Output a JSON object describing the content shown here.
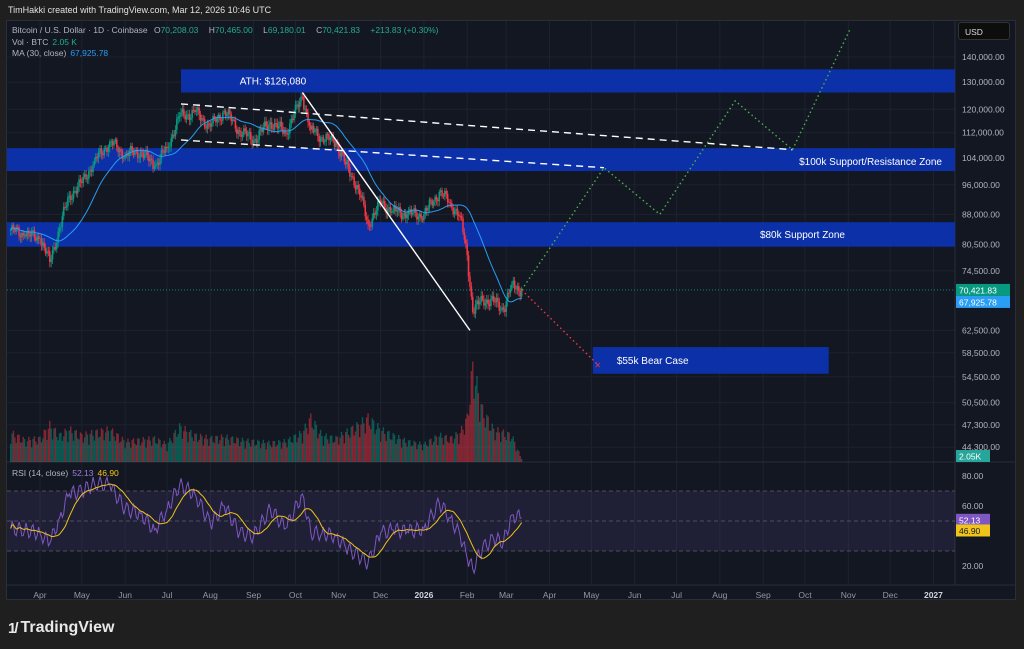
{
  "header": {
    "credit": "TimHakki created with TradingView.com, Mar 12, 2026 10:46 UTC"
  },
  "legend": {
    "symbol": "Bitcoin / U.S. Dollar · 1D · Coinbase",
    "o_label": "O",
    "open": "70,208.03",
    "h_label": "H",
    "high": "70,465.00",
    "l_label": "L",
    "low": "69,180.01",
    "c_label": "C",
    "close": "70,421.83",
    "change": "+213.83 (+0.30%)",
    "vol_label": "Vol · BTC",
    "vol_value": "2.05 K",
    "ma_label": "MA (30, close)",
    "ma_value": "67,925.78",
    "rsi_label": "RSI (14, close)",
    "rsi_value": "52.13",
    "rsi_ma_value": "46.90"
  },
  "price_axis": {
    "currency": "USD",
    "last_price_label": "70,421.83",
    "ma_price_label": "67,925.78",
    "volume_label": "2.05K",
    "rsi_label": "52.13",
    "rsi_ma_label": "46.90"
  },
  "branding": {
    "logo": "TradingView"
  },
  "colors": {
    "up": "#089981",
    "down": "#f23645",
    "ma": "#2a9df4",
    "zone": "#0c33b4",
    "rsi": "#7e57c2",
    "rsi_ma": "#f0c419",
    "projection_up": "#4caf50",
    "projection_down": "#f23645"
  },
  "chart_data": {
    "type": "candlestick",
    "title": "Bitcoin / U.S. Dollar · 1D · Coinbase",
    "y_scale": "log",
    "ylim": [
      42000,
      155000
    ],
    "grid": true,
    "price_ticks": [
      140000,
      130000,
      120000,
      112000,
      104000,
      96000,
      88000,
      80500,
      74500,
      62500,
      58500,
      54500,
      50500,
      47300,
      44300
    ],
    "price_tick_labels": [
      "140,000.00",
      "130,000.00",
      "120,000.00",
      "112,000.00",
      "104,000.00",
      "96,000.00",
      "88,000.00",
      "80,500.00",
      "74,500.00",
      "62,500.00",
      "58,500.00",
      "54,500.00",
      "50,500.00",
      "47,300.00",
      "44,300.00"
    ],
    "time_ticks": [
      {
        "date": "2025-04-01",
        "label": "Apr"
      },
      {
        "date": "2025-05-01",
        "label": "May"
      },
      {
        "date": "2025-06-01",
        "label": "Jun"
      },
      {
        "date": "2025-07-01",
        "label": "Jul"
      },
      {
        "date": "2025-08-01",
        "label": "Aug"
      },
      {
        "date": "2025-09-01",
        "label": "Sep"
      },
      {
        "date": "2025-10-01",
        "label": "Oct"
      },
      {
        "date": "2025-11-01",
        "label": "Nov"
      },
      {
        "date": "2025-12-01",
        "label": "Dec"
      },
      {
        "date": "2026-01-01",
        "label": "2026",
        "bold": true
      },
      {
        "date": "2026-02-01",
        "label": "Feb"
      },
      {
        "date": "2026-03-01",
        "label": "Mar"
      },
      {
        "date": "2026-04-01",
        "label": "Apr"
      },
      {
        "date": "2026-05-01",
        "label": "May"
      },
      {
        "date": "2026-06-01",
        "label": "Jun"
      },
      {
        "date": "2026-07-01",
        "label": "Jul"
      },
      {
        "date": "2026-08-01",
        "label": "Aug"
      },
      {
        "date": "2026-09-01",
        "label": "Sep"
      },
      {
        "date": "2026-10-01",
        "label": "Oct"
      },
      {
        "date": "2026-11-01",
        "label": "Nov"
      },
      {
        "date": "2026-12-01",
        "label": "Dec"
      },
      {
        "date": "2027-01-01",
        "label": "2027",
        "bold": true
      }
    ],
    "series": {
      "dates": [
        "2025-03-11",
        "2025-03-21",
        "2025-04-01",
        "2025-04-08",
        "2025-04-15",
        "2025-04-22",
        "2025-05-01",
        "2025-05-10",
        "2025-05-21",
        "2025-06-01",
        "2025-06-12",
        "2025-06-22",
        "2025-07-01",
        "2025-07-10",
        "2025-07-21",
        "2025-08-01",
        "2025-08-11",
        "2025-08-22",
        "2025-09-01",
        "2025-09-13",
        "2025-09-24",
        "2025-10-06",
        "2025-10-12",
        "2025-10-20",
        "2025-10-30",
        "2025-11-06",
        "2025-11-15",
        "2025-11-22",
        "2025-12-01",
        "2025-12-10",
        "2025-12-20",
        "2026-01-01",
        "2026-01-12",
        "2026-01-20",
        "2026-01-27",
        "2026-02-01",
        "2026-02-05",
        "2026-02-12",
        "2026-02-20",
        "2026-02-27",
        "2026-03-05",
        "2026-03-12"
      ],
      "close": [
        84000,
        83000,
        82000,
        76500,
        84500,
        93000,
        96500,
        103000,
        109000,
        105000,
        106000,
        101500,
        107000,
        117500,
        119000,
        114000,
        119500,
        112500,
        109500,
        115500,
        112000,
        124500,
        113000,
        110500,
        109000,
        102000,
        95000,
        85500,
        91000,
        89000,
        88000,
        88000,
        94000,
        91000,
        87500,
        78000,
        66000,
        68500,
        68000,
        66500,
        71500,
        70421.83
      ],
      "volume_k_btc": [
        20,
        15,
        16,
        25,
        18,
        22,
        18,
        20,
        22,
        14,
        15,
        16,
        12,
        24,
        18,
        16,
        17,
        15,
        14,
        13,
        14,
        20,
        30,
        18,
        16,
        20,
        25,
        30,
        22,
        18,
        14,
        12,
        18,
        16,
        20,
        30,
        65,
        35,
        22,
        20,
        18,
        2.05
      ],
      "rsi": [
        45,
        44,
        42,
        35,
        52,
        68,
        70,
        75,
        74,
        58,
        55,
        44,
        58,
        74,
        68,
        48,
        60,
        42,
        40,
        58,
        45,
        68,
        42,
        42,
        40,
        32,
        27,
        22,
        42,
        44,
        43,
        45,
        62,
        52,
        40,
        25,
        18,
        32,
        38,
        36,
        54,
        52.13
      ]
    },
    "ma_period": 30,
    "rsi_ticks": [
      80,
      60,
      20
    ],
    "rsi_band": [
      30,
      70
    ],
    "zones": [
      {
        "label": "ATH: $126,080",
        "from_date": "2025-07-11",
        "to_date": "open",
        "low": 126080,
        "high": 135000,
        "label_align": "left-center"
      },
      {
        "label": "$100k Support/Resistance Zone",
        "from_date": "start",
        "to_date": "open",
        "low": 100000,
        "high": 107000,
        "label_align": "right"
      },
      {
        "label": "$80k Support Zone",
        "from_date": "start",
        "to_date": "open",
        "low": 80000,
        "high": 86000,
        "label_align": "right-mid"
      },
      {
        "label": "$55k Bear Case",
        "from_date": "2026-05-02",
        "to_date": "2026-10-18",
        "low": 55000,
        "high": 59500,
        "label_align": "left"
      }
    ],
    "trendlines": [
      {
        "style": "solid",
        "points": [
          [
            "2025-10-06",
            126080
          ],
          [
            "2026-02-03",
            62500
          ]
        ]
      },
      {
        "style": "dashed",
        "points": [
          [
            "2025-07-11",
            121900
          ],
          [
            "2026-09-22",
            106500
          ]
        ]
      },
      {
        "style": "dashed",
        "points": [
          [
            "2025-07-11",
            109600
          ],
          [
            "2026-05-10",
            101000
          ]
        ]
      }
    ],
    "projections": [
      {
        "name": "bull",
        "style": "dotted-green",
        "points": [
          [
            "2026-03-12",
            70421.83
          ],
          [
            "2026-05-10",
            101000
          ],
          [
            "2026-06-19",
            88000
          ],
          [
            "2026-08-12",
            123000
          ],
          [
            "2026-09-22",
            106500
          ],
          [
            "2026-11-02",
            151600
          ]
        ]
      },
      {
        "name": "bear",
        "style": "dotted-red",
        "points": [
          [
            "2026-03-12",
            70421.83
          ],
          [
            "2026-05-06",
            56400
          ]
        ]
      }
    ]
  }
}
